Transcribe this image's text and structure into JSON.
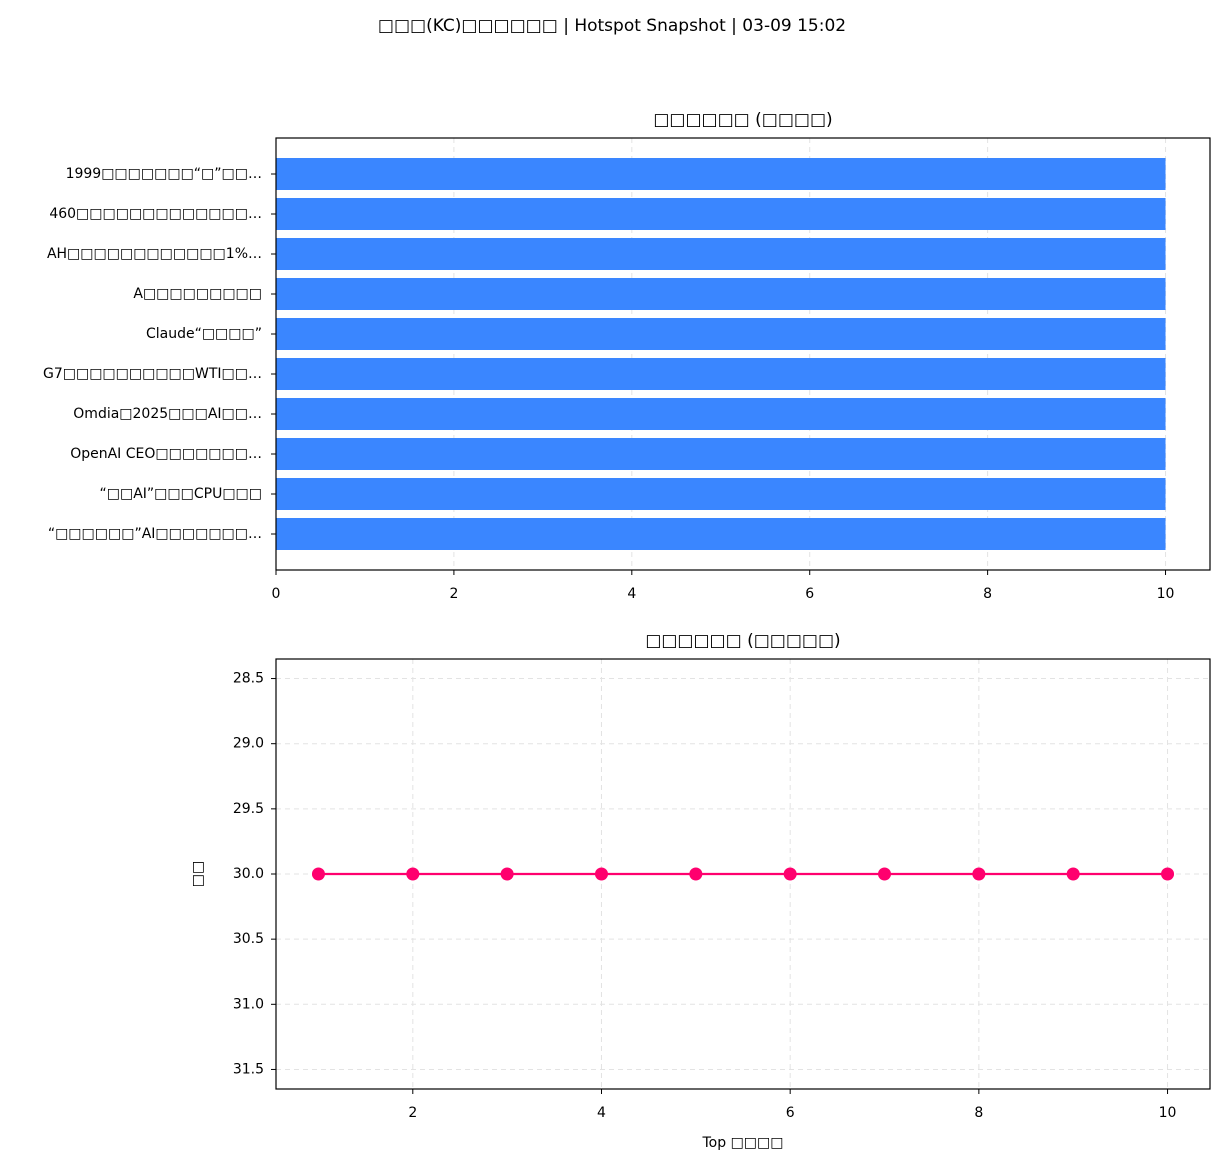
{
  "title": "□□□(KC)□□□□□□ | Hotspot Snapshot | 03-09 15:02",
  "chart_data": [
    {
      "type": "barh",
      "title": "□□□□□□ (□□□□)",
      "categories": [
        "1999□□□□□□□“□”□□…",
        "460□□□□□□□□□□□□□…",
        "AH□□□□□□□□□□□□1%…",
        "A□□□□□□□□□",
        "Claude“□□□□”",
        "G7□□□□□□□□□□WTI□□…",
        "Omdia□2025□□□AI□□…",
        "OpenAI CEO□□□□□□□…",
        "“□□AI”□□□CPU□□□",
        "“□□□□□□”AI□□□□□□□…"
      ],
      "values": [
        10,
        10,
        10,
        10,
        10,
        10,
        10,
        10,
        10,
        10
      ],
      "color": "#3a86ff",
      "xlim": [
        0,
        10.5
      ],
      "xticks": [
        0,
        2,
        4,
        6,
        8,
        10
      ],
      "grid": true
    },
    {
      "type": "line",
      "title": "□□□□□□ (□□□□□)",
      "xlabel": "Top □□□□",
      "ylabel": "□□",
      "x": [
        1,
        2,
        3,
        4,
        5,
        6,
        7,
        8,
        9,
        10
      ],
      "series": [
        {
          "color": "#ff006e",
          "values": [
            30,
            30,
            30,
            30,
            30,
            30,
            30,
            30,
            30,
            30
          ]
        }
      ],
      "xlim": [
        0.55,
        10.45
      ],
      "xticks": [
        2,
        4,
        6,
        8,
        10
      ],
      "ylim": [
        28.35,
        31.65
      ],
      "yticks": [
        28.5,
        29.0,
        29.5,
        30.0,
        30.5,
        31.0,
        31.5
      ],
      "y_inverted": true,
      "grid": true
    }
  ]
}
